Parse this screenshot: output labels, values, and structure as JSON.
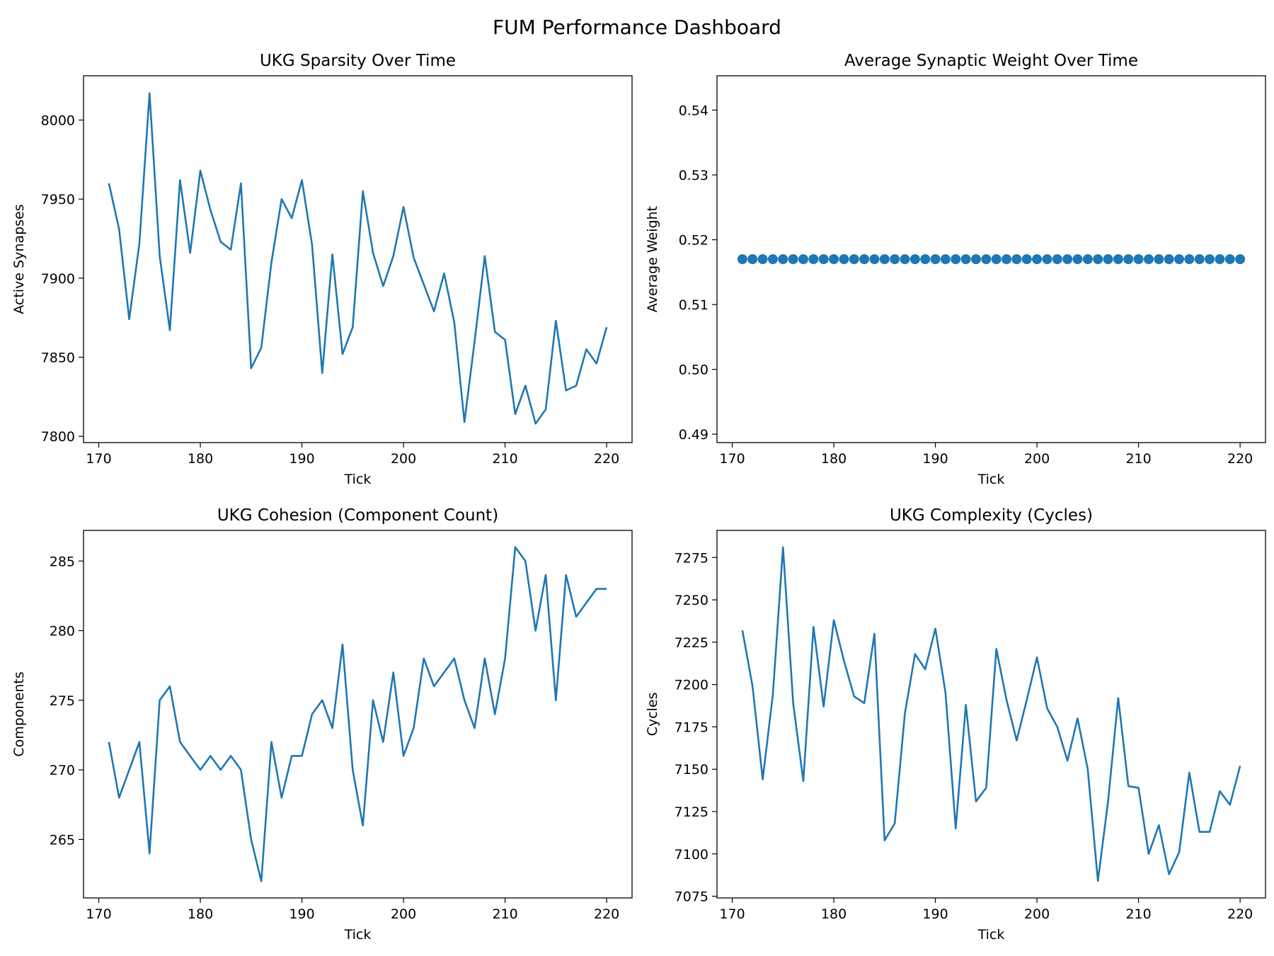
{
  "dashboard_title": "FUM Performance Dashboard",
  "line_color": "#1f77b4",
  "chart_data": [
    {
      "type": "line",
      "title": "UKG Sparsity Over Time",
      "xlabel": "Tick",
      "ylabel": "Active Synapses",
      "xlim": [
        168.5,
        222.5
      ],
      "ylim": [
        7796,
        8028
      ],
      "xticks": [
        170,
        180,
        190,
        200,
        210,
        220
      ],
      "yticks": [
        7800,
        7850,
        7900,
        7950,
        8000
      ],
      "x": [
        171,
        172,
        173,
        174,
        175,
        176,
        177,
        178,
        179,
        180,
        181,
        182,
        183,
        184,
        185,
        186,
        187,
        188,
        189,
        190,
        191,
        192,
        193,
        194,
        195,
        196,
        197,
        198,
        199,
        200,
        201,
        202,
        203,
        204,
        205,
        206,
        207,
        208,
        209,
        210,
        211,
        212,
        213,
        214,
        215,
        216,
        217,
        218,
        219,
        220
      ],
      "y": [
        7960,
        7931,
        7874,
        7922,
        8017,
        7914,
        7867,
        7962,
        7916,
        7968,
        7943,
        7923,
        7918,
        7960,
        7843,
        7856,
        7910,
        7950,
        7938,
        7962,
        7921,
        7840,
        7915,
        7852,
        7869,
        7955,
        7916,
        7895,
        7914,
        7945,
        7913,
        7896,
        7879,
        7903,
        7872,
        7809,
        7860,
        7914,
        7866,
        7861,
        7814,
        7832,
        7808,
        7817,
        7873,
        7829,
        7832,
        7855,
        7846,
        7869
      ]
    },
    {
      "type": "scatter",
      "title": "Average Synaptic Weight Over Time",
      "xlabel": "Tick",
      "ylabel": "Average Weight",
      "xlim": [
        168.5,
        222.5
      ],
      "ylim": [
        0.4887,
        0.5453
      ],
      "xticks": [
        170,
        180,
        190,
        200,
        210,
        220
      ],
      "yticks": [
        0.49,
        0.5,
        0.51,
        0.52,
        0.53,
        0.54
      ],
      "ytick_labels": [
        "0.49",
        "0.50",
        "0.51",
        "0.52",
        "0.53",
        "0.54"
      ],
      "x": [
        171,
        172,
        173,
        174,
        175,
        176,
        177,
        178,
        179,
        180,
        181,
        182,
        183,
        184,
        185,
        186,
        187,
        188,
        189,
        190,
        191,
        192,
        193,
        194,
        195,
        196,
        197,
        198,
        199,
        200,
        201,
        202,
        203,
        204,
        205,
        206,
        207,
        208,
        209,
        210,
        211,
        212,
        213,
        214,
        215,
        216,
        217,
        218,
        219,
        220
      ],
      "y": [
        0.517,
        0.517,
        0.517,
        0.517,
        0.517,
        0.517,
        0.517,
        0.517,
        0.517,
        0.517,
        0.517,
        0.517,
        0.517,
        0.517,
        0.517,
        0.517,
        0.517,
        0.517,
        0.517,
        0.517,
        0.517,
        0.517,
        0.517,
        0.517,
        0.517,
        0.517,
        0.517,
        0.517,
        0.517,
        0.517,
        0.517,
        0.517,
        0.517,
        0.517,
        0.517,
        0.517,
        0.517,
        0.517,
        0.517,
        0.517,
        0.517,
        0.517,
        0.517,
        0.517,
        0.517,
        0.517,
        0.517,
        0.517,
        0.517,
        0.517
      ]
    },
    {
      "type": "line",
      "title": "UKG Cohesion (Component Count)",
      "xlabel": "Tick",
      "ylabel": "Components",
      "xlim": [
        168.5,
        222.5
      ],
      "ylim": [
        260.8,
        287.2
      ],
      "xticks": [
        170,
        180,
        190,
        200,
        210,
        220
      ],
      "yticks": [
        265,
        270,
        275,
        280,
        285
      ],
      "x": [
        171,
        172,
        173,
        174,
        175,
        176,
        177,
        178,
        179,
        180,
        181,
        182,
        183,
        184,
        185,
        186,
        187,
        188,
        189,
        190,
        191,
        192,
        193,
        194,
        195,
        196,
        197,
        198,
        199,
        200,
        201,
        202,
        203,
        204,
        205,
        206,
        207,
        208,
        209,
        210,
        211,
        212,
        213,
        214,
        215,
        216,
        217,
        218,
        219,
        220
      ],
      "y": [
        272,
        268,
        270,
        272,
        264,
        275,
        276,
        272,
        271,
        270,
        271,
        270,
        271,
        270,
        265,
        262,
        272,
        268,
        271,
        271,
        274,
        275,
        273,
        279,
        270,
        266,
        275,
        272,
        277,
        271,
        273,
        278,
        276,
        277,
        278,
        275,
        273,
        278,
        274,
        278,
        286,
        285,
        280,
        284,
        275,
        284,
        281,
        282,
        283,
        283
      ]
    },
    {
      "type": "line",
      "title": "UKG Complexity (Cycles)",
      "xlabel": "Tick",
      "ylabel": "Cycles",
      "xlim": [
        168.5,
        222.5
      ],
      "ylim": [
        7074,
        7291
      ],
      "xticks": [
        170,
        180,
        190,
        200,
        210,
        220
      ],
      "yticks": [
        7075,
        7100,
        7125,
        7150,
        7175,
        7200,
        7225,
        7250,
        7275
      ],
      "x": [
        171,
        172,
        173,
        174,
        175,
        176,
        177,
        178,
        179,
        180,
        181,
        182,
        183,
        184,
        185,
        186,
        187,
        188,
        189,
        190,
        191,
        192,
        193,
        194,
        195,
        196,
        197,
        198,
        199,
        200,
        201,
        202,
        203,
        204,
        205,
        206,
        207,
        208,
        209,
        210,
        211,
        212,
        213,
        214,
        215,
        216,
        217,
        218,
        219,
        220
      ],
      "y": [
        7232,
        7199,
        7144,
        7194,
        7281,
        7189,
        7143,
        7234,
        7187,
        7238,
        7214,
        7193,
        7189,
        7230,
        7108,
        7118,
        7183,
        7218,
        7209,
        7233,
        7195,
        7115,
        7188,
        7131,
        7139,
        7221,
        7191,
        7167,
        7191,
        7216,
        7186,
        7175,
        7155,
        7180,
        7150,
        7084,
        7131,
        7192,
        7140,
        7139,
        7100,
        7117,
        7088,
        7101,
        7148,
        7113,
        7113,
        7137,
        7129,
        7152
      ]
    }
  ]
}
